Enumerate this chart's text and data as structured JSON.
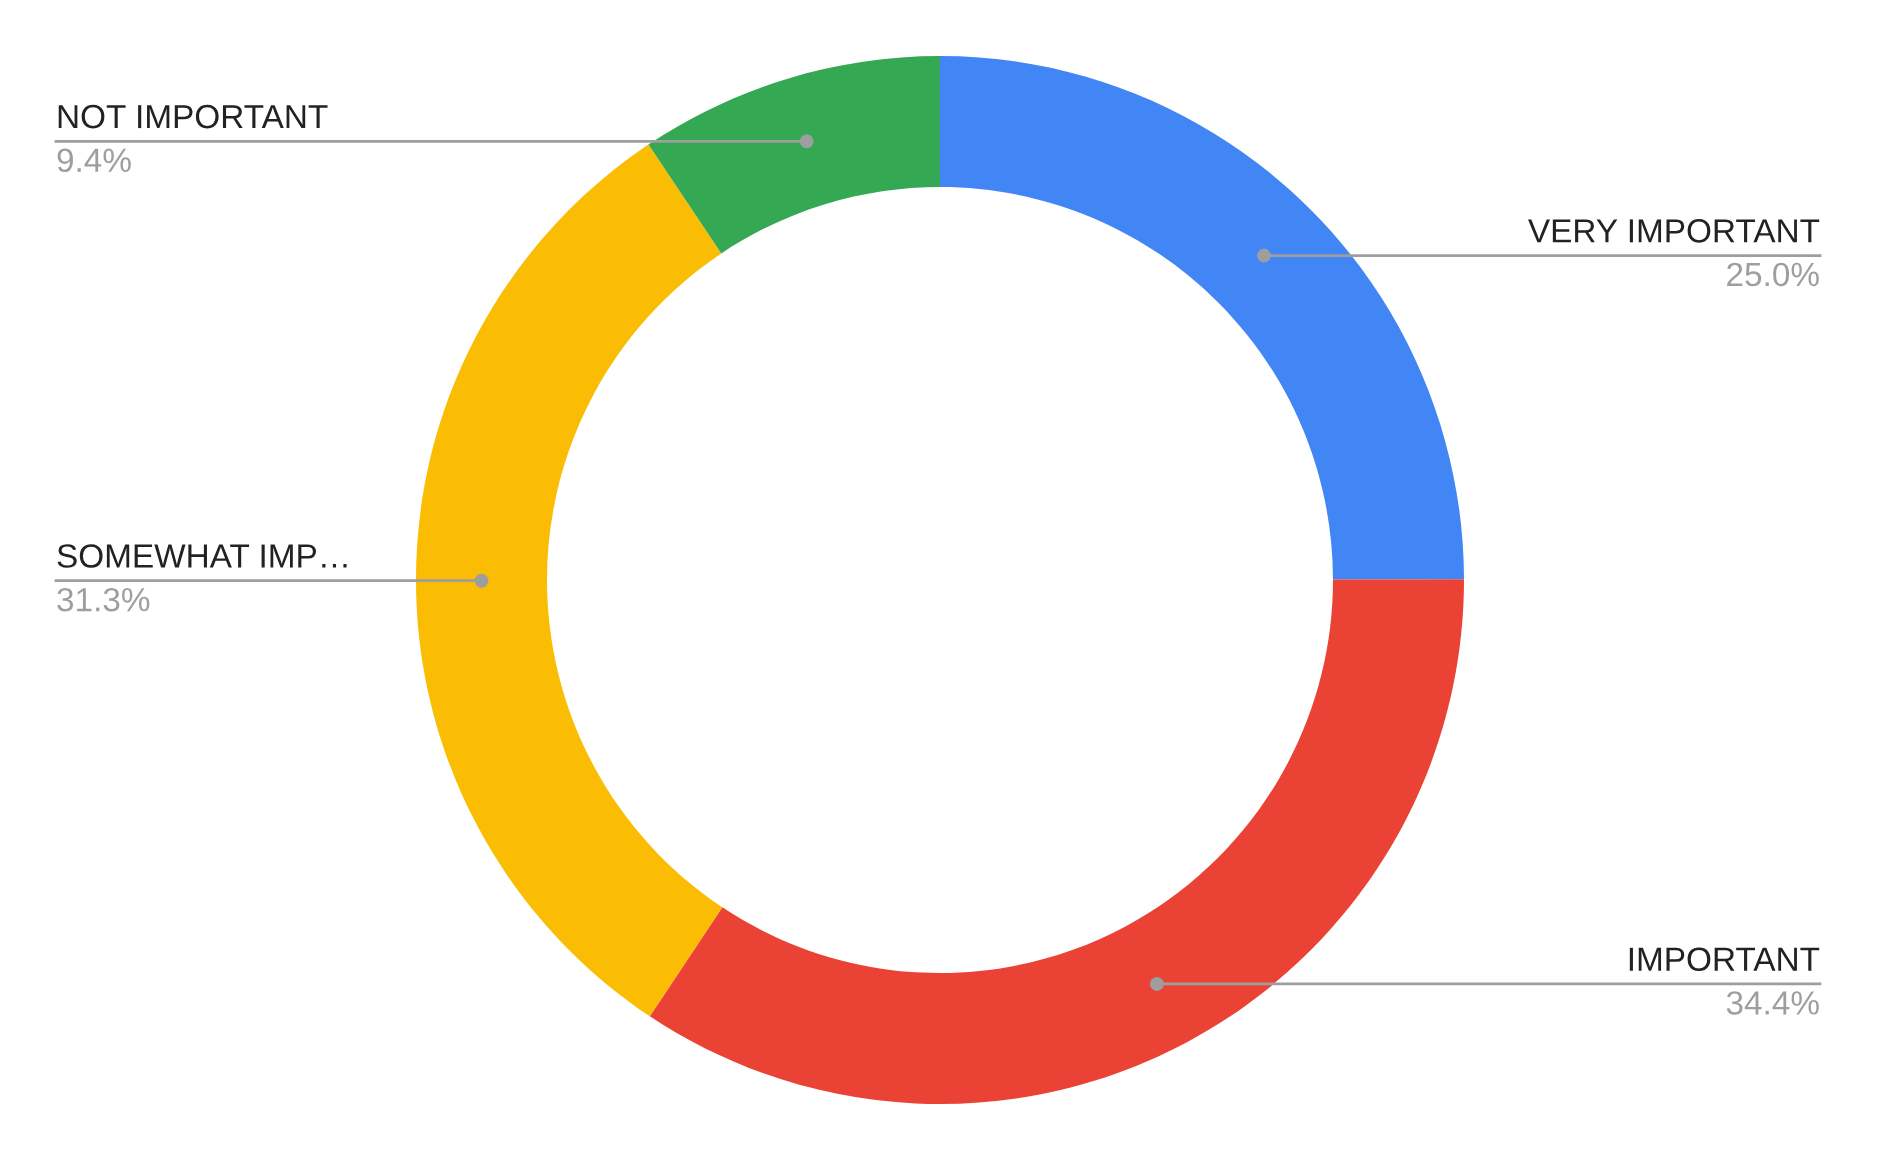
{
  "chart_data": {
    "type": "donut",
    "categories": [
      "VERY IMPORTANT",
      "IMPORTANT",
      "SOMEWHAT IMP…",
      "NOT IMPORTANT"
    ],
    "values": [
      25.0,
      34.4,
      31.3,
      9.4
    ],
    "value_labels": [
      "25.0%",
      "34.4%",
      "31.3%",
      "9.4%"
    ],
    "colors": [
      "#4285f4",
      "#ea4335",
      "#fbbc04",
      "#34a853"
    ],
    "legend": false
  }
}
